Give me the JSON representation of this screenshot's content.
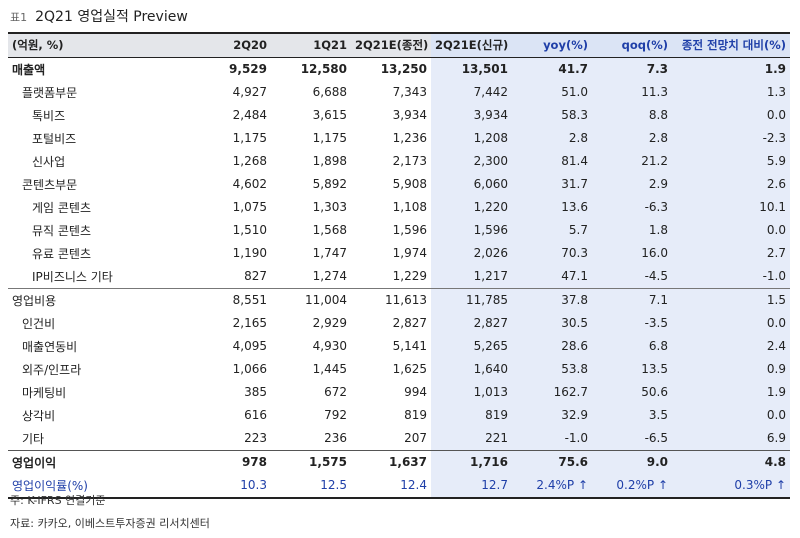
{
  "title": {
    "prefix": "표1",
    "text": "2Q21 영업실적 Preview"
  },
  "columns": [
    "(억원, %)",
    "2Q20",
    "1Q21",
    "2Q21E(종전)",
    "2Q21E(신규)",
    "yoy(%)",
    "qoq(%)",
    "종전 전망치 대비(%)"
  ],
  "rows": [
    {
      "label": "매출액",
      "values": [
        "9,529",
        "12,580",
        "13,250",
        "13,501",
        "41.7",
        "7.3",
        "1.9"
      ]
    },
    {
      "label": "플랫폼부문",
      "values": [
        "4,927",
        "6,688",
        "7,343",
        "7,442",
        "51.0",
        "11.3",
        "1.3"
      ]
    },
    {
      "label": "톡비즈",
      "values": [
        "2,484",
        "3,615",
        "3,934",
        "3,934",
        "58.3",
        "8.8",
        "0.0"
      ]
    },
    {
      "label": "포털비즈",
      "values": [
        "1,175",
        "1,175",
        "1,236",
        "1,208",
        "2.8",
        "2.8",
        "-2.3"
      ]
    },
    {
      "label": "신사업",
      "values": [
        "1,268",
        "1,898",
        "2,173",
        "2,300",
        "81.4",
        "21.2",
        "5.9"
      ]
    },
    {
      "label": "콘텐츠부문",
      "values": [
        "4,602",
        "5,892",
        "5,908",
        "6,060",
        "31.7",
        "2.9",
        "2.6"
      ]
    },
    {
      "label": "게임 콘텐츠",
      "values": [
        "1,075",
        "1,303",
        "1,108",
        "1,220",
        "13.6",
        "-6.3",
        "10.1"
      ]
    },
    {
      "label": "뮤직 콘텐츠",
      "values": [
        "1,510",
        "1,568",
        "1,596",
        "1,596",
        "5.7",
        "1.8",
        "0.0"
      ]
    },
    {
      "label": "유료 콘텐츠",
      "values": [
        "1,190",
        "1,747",
        "1,974",
        "2,026",
        "70.3",
        "16.0",
        "2.7"
      ]
    },
    {
      "label": "IP비즈니스 기타",
      "values": [
        "827",
        "1,274",
        "1,229",
        "1,217",
        "47.1",
        "-4.5",
        "-1.0"
      ]
    },
    {
      "label": "영업비용",
      "values": [
        "8,551",
        "11,004",
        "11,613",
        "11,785",
        "37.8",
        "7.1",
        "1.5"
      ]
    },
    {
      "label": "인건비",
      "values": [
        "2,165",
        "2,929",
        "2,827",
        "2,827",
        "30.5",
        "-3.5",
        "0.0"
      ]
    },
    {
      "label": "매출연동비",
      "values": [
        "4,095",
        "4,930",
        "5,141",
        "5,265",
        "28.6",
        "6.8",
        "2.4"
      ]
    },
    {
      "label": "외주/인프라",
      "values": [
        "1,066",
        "1,445",
        "1,625",
        "1,640",
        "53.8",
        "13.5",
        "0.9"
      ]
    },
    {
      "label": "마케팅비",
      "values": [
        "385",
        "672",
        "994",
        "1,013",
        "162.7",
        "50.6",
        "1.9"
      ]
    },
    {
      "label": "상각비",
      "values": [
        "616",
        "792",
        "819",
        "819",
        "32.9",
        "3.5",
        "0.0"
      ]
    },
    {
      "label": "기타",
      "values": [
        "223",
        "236",
        "207",
        "221",
        "-1.0",
        "-6.5",
        "6.9"
      ]
    },
    {
      "label": "영업이익",
      "values": [
        "978",
        "1,575",
        "1,637",
        "1,716",
        "75.6",
        "9.0",
        "4.8"
      ]
    },
    {
      "label": "영업이익률(%)",
      "values": [
        "10.3",
        "12.5",
        "12.4",
        "12.7",
        "2.4%P ↑",
        "0.2%P ↑",
        "0.3%P ↑"
      ]
    }
  ],
  "notes": {
    "basis": "주: K-IFRS 연결기준",
    "source": "자료: 카카오, 이베스트투자증권 리서치센터"
  }
}
